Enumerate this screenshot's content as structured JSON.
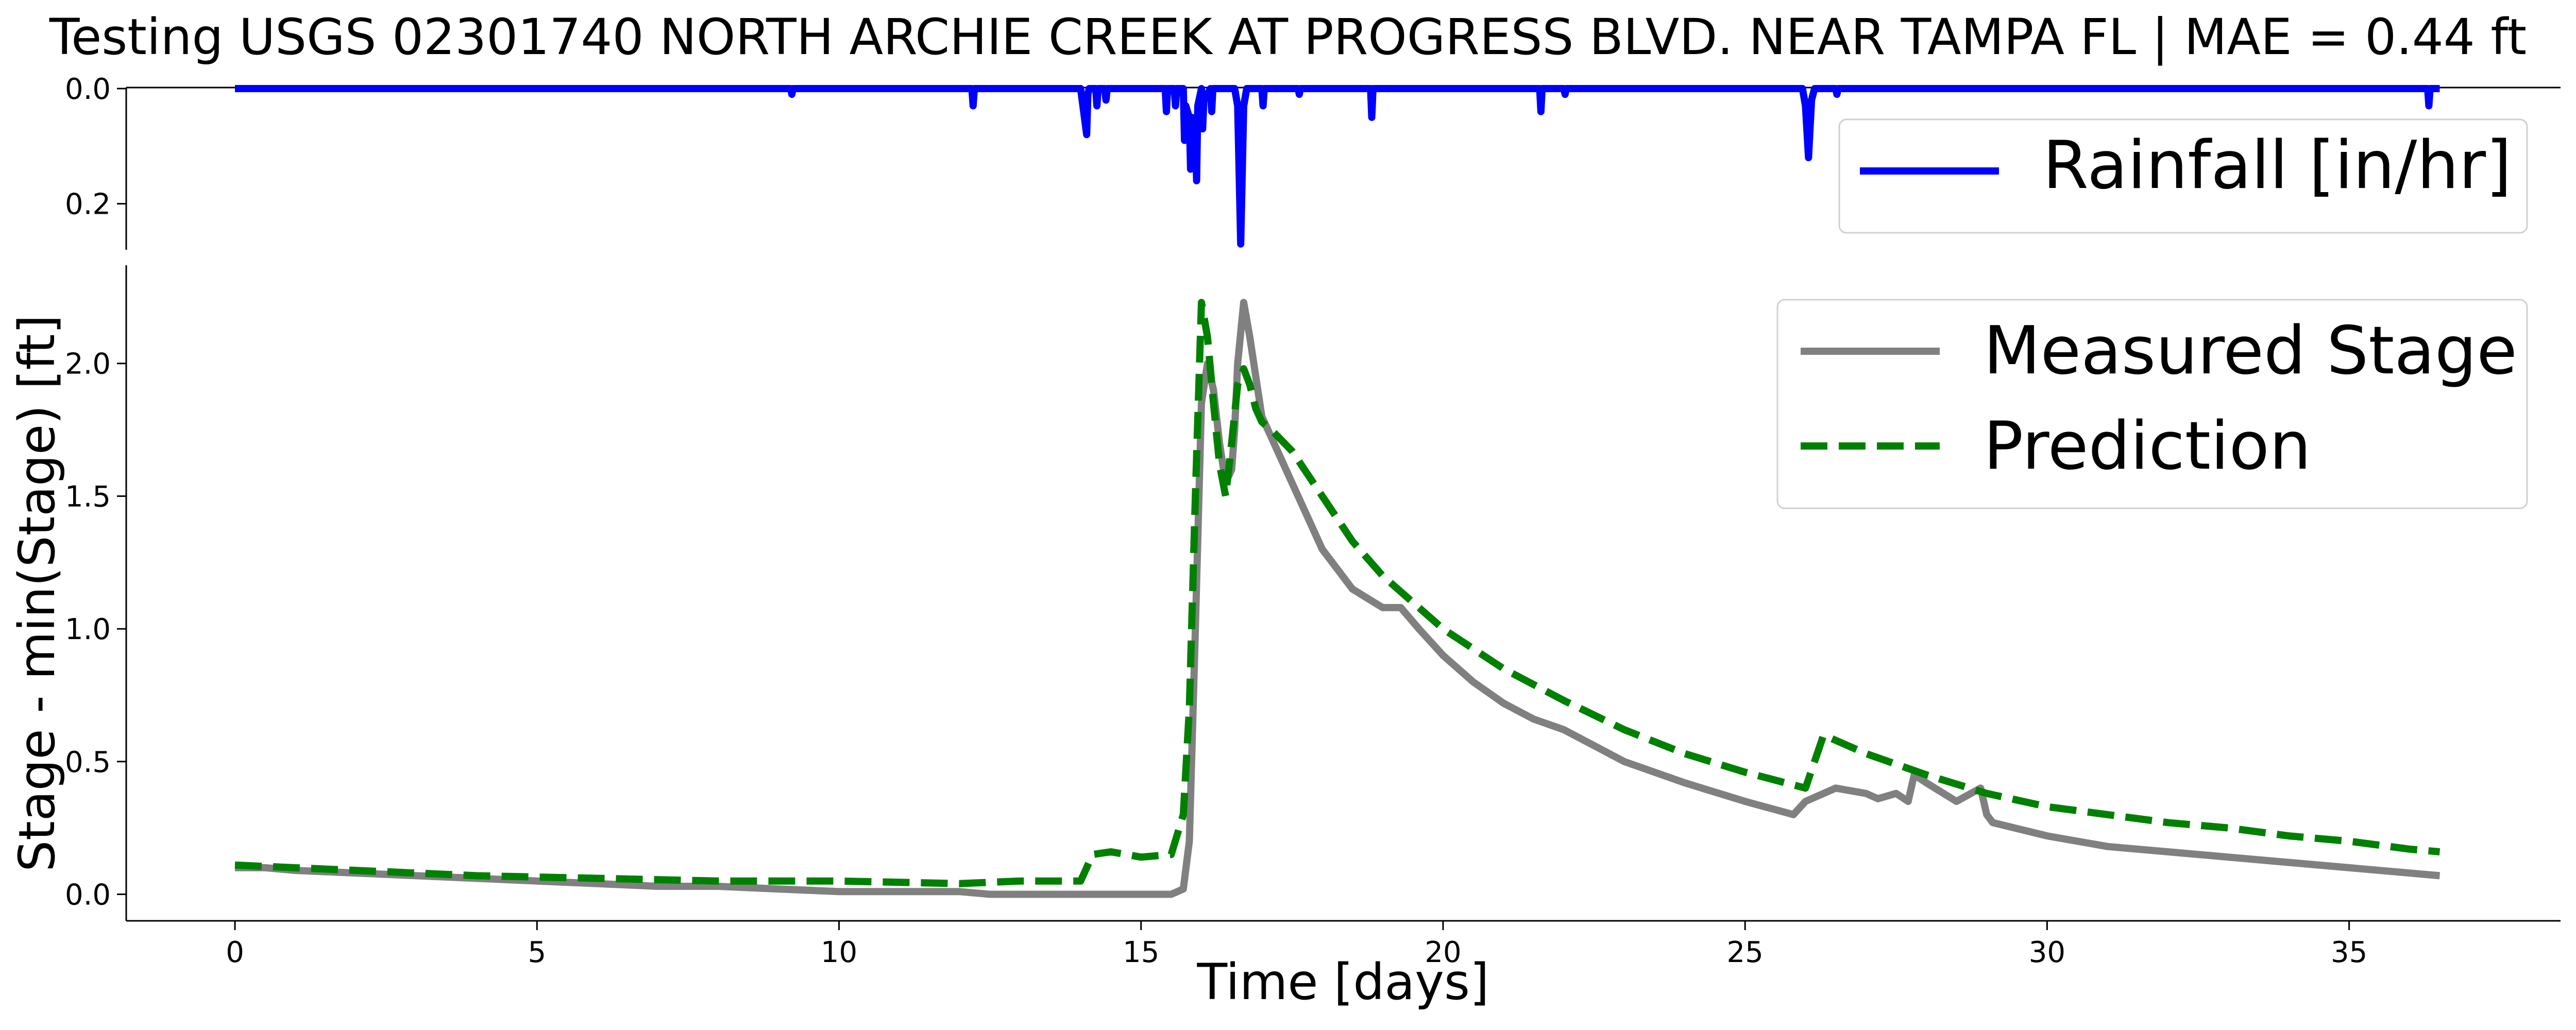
{
  "chart_data": {
    "title": "Testing USGS 02301740 NORTH ARCHIE CREEK AT PROGRESS BLVD. NEAR TAMPA FL | MAE = 0.44 ft",
    "panels": [
      {
        "type": "line",
        "role": "rainfall",
        "y_inverted": true,
        "ylim": [
          0.0,
          0.28
        ],
        "yticks": [
          0.0,
          0.2
        ],
        "ytick_labels": [
          "0.0",
          "0.2"
        ],
        "xlim": [
          -1.8,
          38.5
        ],
        "legend_position": "top-right",
        "series": [
          {
            "name": "Rainfall [in/hr]",
            "color": "#0000ff",
            "style": "solid",
            "x": [
              0,
              9.2,
              9.22,
              9.24,
              12.2,
              12.22,
              12.24,
              14.0,
              14.1,
              14.12,
              14.14,
              14.25,
              14.27,
              14.29,
              14.4,
              14.42,
              14.44,
              15.4,
              15.42,
              15.44,
              15.55,
              15.57,
              15.59,
              15.7,
              15.72,
              15.74,
              15.8,
              15.82,
              15.84,
              15.9,
              15.92,
              15.94,
              16.0,
              16.02,
              16.04,
              16.15,
              16.17,
              16.19,
              16.55,
              16.6,
              16.65,
              16.7,
              16.75,
              17.0,
              17.02,
              17.04,
              17.6,
              17.62,
              17.64,
              18.8,
              18.82,
              18.84,
              21.6,
              21.62,
              21.64,
              22.0,
              22.02,
              22.04,
              25.95,
              26.0,
              26.05,
              26.1,
              26.15,
              26.5,
              26.52,
              26.54,
              36.3,
              36.32,
              36.34,
              36.5
            ],
            "y": [
              0.0,
              0.0,
              0.01,
              0.0,
              0.0,
              0.03,
              0.0,
              0.0,
              0.08,
              0.01,
              0.0,
              0.0,
              0.03,
              0.0,
              0.0,
              0.02,
              0.0,
              0.0,
              0.04,
              0.0,
              0.0,
              0.03,
              0.0,
              0.0,
              0.09,
              0.03,
              0.05,
              0.14,
              0.05,
              0.06,
              0.16,
              0.03,
              0.0,
              0.07,
              0.02,
              0.0,
              0.04,
              0.0,
              0.0,
              0.03,
              0.27,
              0.03,
              0.0,
              0.0,
              0.03,
              0.0,
              0.0,
              0.01,
              0.0,
              0.0,
              0.05,
              0.0,
              0.0,
              0.04,
              0.0,
              0.0,
              0.01,
              0.0,
              0.0,
              0.03,
              0.12,
              0.02,
              0.0,
              0.0,
              0.01,
              0.0,
              0.0,
              0.03,
              0.0,
              0.0
            ]
          }
        ]
      },
      {
        "type": "line",
        "role": "stage",
        "ylabel": "Stage - min(Stage) [ft]",
        "xlabel": "Time [days]",
        "ylim": [
          -0.1,
          2.37
        ],
        "yticks": [
          0.0,
          0.5,
          1.0,
          1.5,
          2.0
        ],
        "ytick_labels": [
          "0.0",
          "0.5",
          "1.0",
          "1.5",
          "2.0"
        ],
        "xlim": [
          -1.8,
          38.5
        ],
        "xticks": [
          0,
          5,
          10,
          15,
          20,
          25,
          30,
          35
        ],
        "xtick_labels": [
          "0",
          "5",
          "10",
          "15",
          "20",
          "25",
          "30",
          "35"
        ],
        "legend_position": "top-right",
        "series": [
          {
            "name": "Measured Stage",
            "color": "#808080",
            "style": "solid",
            "x": [
              0,
              0.5,
              1,
              2,
              3,
              4,
              5,
              6,
              7,
              8,
              9,
              10,
              11,
              12,
              12.5,
              13,
              14,
              15,
              15.5,
              15.7,
              15.8,
              15.9,
              16.0,
              16.1,
              16.2,
              16.3,
              16.4,
              16.5,
              16.55,
              16.6,
              16.7,
              16.8,
              16.9,
              17.0,
              17.2,
              17.5,
              17.8,
              18.0,
              18.5,
              19.0,
              19.3,
              19.6,
              20.0,
              20.5,
              21.0,
              21.5,
              22.0,
              22.5,
              23.0,
              24.0,
              25.0,
              25.8,
              26.0,
              26.5,
              27.0,
              27.2,
              27.5,
              27.7,
              27.8,
              28.0,
              28.5,
              28.9,
              29.0,
              29.1,
              30.0,
              31.0,
              32.0,
              33.0,
              34.0,
              35.0,
              36.0,
              36.5
            ],
            "y": [
              0.1,
              0.1,
              0.09,
              0.08,
              0.07,
              0.06,
              0.05,
              0.04,
              0.03,
              0.03,
              0.02,
              0.01,
              0.01,
              0.01,
              0.0,
              0.0,
              0.0,
              0.0,
              0.0,
              0.02,
              0.2,
              1.0,
              1.85,
              2.0,
              1.9,
              1.7,
              1.55,
              1.6,
              1.75,
              2.0,
              2.23,
              2.1,
              1.95,
              1.8,
              1.7,
              1.55,
              1.4,
              1.3,
              1.15,
              1.08,
              1.08,
              1.0,
              0.9,
              0.8,
              0.72,
              0.66,
              0.62,
              0.56,
              0.5,
              0.42,
              0.35,
              0.3,
              0.35,
              0.4,
              0.38,
              0.36,
              0.38,
              0.35,
              0.45,
              0.42,
              0.35,
              0.4,
              0.3,
              0.27,
              0.22,
              0.18,
              0.16,
              0.14,
              0.12,
              0.1,
              0.08,
              0.07
            ]
          },
          {
            "name": "Prediction",
            "color": "#008000",
            "style": "dashed",
            "x": [
              0,
              2,
              4,
              6,
              8,
              10,
              12,
              13,
              14,
              14.2,
              14.5,
              15,
              15.5,
              15.7,
              15.8,
              15.9,
              16.0,
              16.1,
              16.2,
              16.3,
              16.4,
              16.5,
              16.6,
              16.7,
              16.8,
              16.9,
              17.0,
              17.2,
              17.5,
              18.0,
              18.5,
              19.0,
              19.5,
              20.0,
              21.0,
              22.0,
              23.0,
              24.0,
              25.0,
              26.0,
              26.3,
              26.5,
              27.0,
              28.0,
              29.0,
              30.0,
              31.0,
              32.0,
              33.0,
              34.0,
              35.0,
              36.0,
              36.5
            ],
            "y": [
              0.11,
              0.09,
              0.07,
              0.06,
              0.05,
              0.05,
              0.04,
              0.05,
              0.05,
              0.15,
              0.16,
              0.14,
              0.15,
              0.3,
              0.7,
              1.5,
              2.23,
              2.1,
              1.85,
              1.62,
              1.5,
              1.7,
              1.92,
              1.98,
              1.92,
              1.83,
              1.78,
              1.74,
              1.67,
              1.5,
              1.33,
              1.2,
              1.1,
              1.0,
              0.85,
              0.73,
              0.62,
              0.53,
              0.46,
              0.4,
              0.6,
              0.58,
              0.53,
              0.45,
              0.38,
              0.33,
              0.3,
              0.27,
              0.25,
              0.22,
              0.2,
              0.17,
              0.16
            ]
          }
        ]
      }
    ]
  }
}
